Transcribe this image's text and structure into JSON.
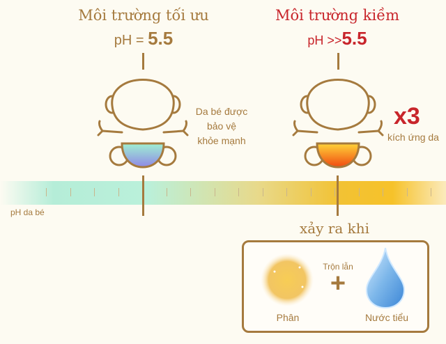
{
  "left": {
    "title": "Môi trường tối ưu",
    "ph_prefix": "pH = ",
    "ph_value": "5.5",
    "note_lines": [
      "Da bé được",
      "bảo vệ",
      "khỏe mạnh"
    ]
  },
  "right": {
    "title": "Môi trường kiềm",
    "ph_prefix": "pH >>",
    "ph_value": "5.5",
    "multiplier": "x3",
    "note": "kích ứng da"
  },
  "scale_label": "pH da bé",
  "cause": {
    "heading": "xảy ra khi",
    "mix_label": "Trộn lẫn",
    "plus": "+",
    "item1": "Phân",
    "item2": "Nước tiểu"
  },
  "colors": {
    "gold": "#a57a3e",
    "red": "#c8252b",
    "background": "#fdfbf2"
  },
  "icons": [
    "baby-outline-icon",
    "stool-orb-icon",
    "water-drop-icon"
  ]
}
